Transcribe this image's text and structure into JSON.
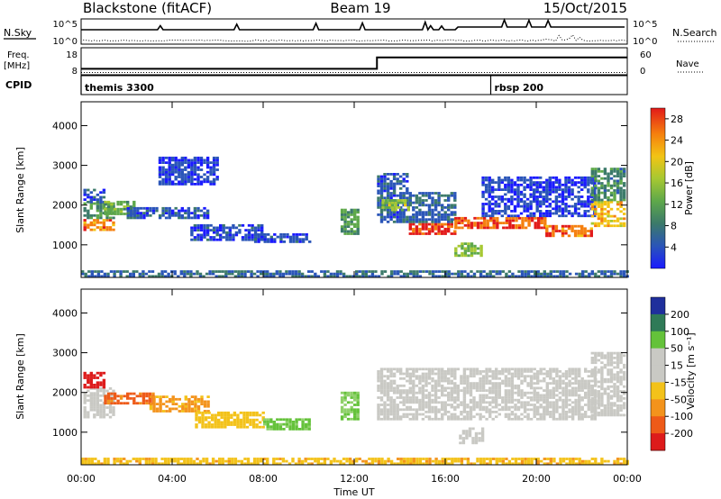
{
  "header": {
    "station": "Blackstone (fitACF)",
    "beam": "Beam 19",
    "date": "15/Oct/2015"
  },
  "status_panels": {
    "nsky_label": "N.Sky",
    "nsearch_label": "N.Search",
    "freq_label": "Freq.",
    "freq_unit": "[MHz]",
    "nave_label": "Nave",
    "cpid_label": "CPID",
    "noise_ticks_left": [
      "10^5",
      "10^0"
    ],
    "noise_ticks_right": [
      "10^5",
      "10^0"
    ],
    "freq_ticks": [
      "18",
      "8"
    ],
    "nave_ticks": [
      "60",
      "0"
    ],
    "freq_steps": [
      {
        "t": 0,
        "f": 10.2
      },
      {
        "t": 13.0,
        "f": 14.4
      },
      {
        "t": 24,
        "f": 14.4
      }
    ],
    "nave_steps": [
      {
        "t": 0,
        "n": 5
      },
      {
        "t": 24,
        "n": 5
      }
    ],
    "cpid_segments": [
      {
        "start": 0,
        "end": 18.0,
        "label": "themis 3300"
      },
      {
        "start": 18.0,
        "end": 24,
        "label": "rbsp 200"
      }
    ]
  },
  "chart_data": [
    {
      "type": "heatmap",
      "title": "Power",
      "ylabel": "Slant Range [km]",
      "xlabel": "Time UT",
      "xlim": [
        0,
        24
      ],
      "ylim": [
        180,
        4600
      ],
      "yticks": [
        "1000",
        "2000",
        "3000",
        "4000"
      ],
      "xticks": [
        "00:00",
        "04:00",
        "08:00",
        "12:00",
        "16:00",
        "20:00",
        "00:00"
      ],
      "colorbar": {
        "label": "Power [dB]",
        "ticks": [
          "4",
          "8",
          "12",
          "16",
          "20",
          "24",
          "28"
        ],
        "range": [
          0,
          30
        ]
      },
      "regions": [
        {
          "t0": 0.1,
          "t1": 1.4,
          "r0": 1350,
          "r1": 1650,
          "v": 24
        },
        {
          "t0": 0.1,
          "t1": 1.4,
          "r0": 1650,
          "r1": 2050,
          "v": 11
        },
        {
          "t0": 0.1,
          "t1": 1.0,
          "r0": 2050,
          "r1": 2400,
          "v": 6
        },
        {
          "t0": 1.0,
          "t1": 2.4,
          "r0": 1750,
          "r1": 2100,
          "v": 13
        },
        {
          "t0": 2.0,
          "t1": 5.6,
          "r0": 1650,
          "r1": 1950,
          "v": 6
        },
        {
          "t0": 4.8,
          "t1": 8.0,
          "r0": 1100,
          "r1": 1500,
          "v": 5
        },
        {
          "t0": 7.6,
          "t1": 10.0,
          "r0": 1050,
          "r1": 1250,
          "v": 5
        },
        {
          "t0": 3.4,
          "t1": 6.0,
          "r0": 2500,
          "r1": 3200,
          "v": 4
        },
        {
          "t0": 11.4,
          "t1": 12.2,
          "r0": 1250,
          "r1": 1900,
          "v": 12
        },
        {
          "t0": 13.0,
          "t1": 14.4,
          "r0": 1550,
          "r1": 2800,
          "v": 6
        },
        {
          "t0": 13.2,
          "t1": 14.4,
          "r0": 1850,
          "r1": 2100,
          "v": 16
        },
        {
          "t0": 14.4,
          "t1": 16.4,
          "r0": 1250,
          "r1": 1550,
          "v": 27
        },
        {
          "t0": 14.4,
          "t1": 16.4,
          "r0": 1550,
          "r1": 2300,
          "v": 7
        },
        {
          "t0": 16.4,
          "t1": 17.6,
          "r0": 700,
          "r1": 1050,
          "v": 15
        },
        {
          "t0": 16.4,
          "t1": 20.4,
          "r0": 1400,
          "r1": 1700,
          "v": 26
        },
        {
          "t0": 17.6,
          "t1": 22.6,
          "r0": 1700,
          "r1": 2700,
          "v": 4
        },
        {
          "t0": 20.4,
          "t1": 22.4,
          "r0": 1200,
          "r1": 1450,
          "v": 25
        },
        {
          "t0": 22.4,
          "t1": 23.9,
          "r0": 1450,
          "r1": 2100,
          "v": 21
        },
        {
          "t0": 22.4,
          "t1": 23.9,
          "r0": 2100,
          "r1": 2900,
          "v": 10
        },
        {
          "t0": 0.0,
          "t1": 24.0,
          "r0": 180,
          "r1": 320,
          "v": 7
        }
      ]
    },
    {
      "type": "heatmap",
      "title": "Velocity",
      "ylabel": "Slant Range [km]",
      "xlabel": "Time UT",
      "xlim": [
        0,
        24
      ],
      "ylim": [
        180,
        4600
      ],
      "yticks": [
        "1000",
        "2000",
        "3000",
        "4000"
      ],
      "xticks": [
        "00:00",
        "04:00",
        "08:00",
        "12:00",
        "16:00",
        "20:00",
        "00:00"
      ],
      "colorbar": {
        "label": "Velocity [m s⁻¹]",
        "ticks": [
          "200",
          "100",
          "50",
          "15",
          "-15",
          "-50",
          "-100",
          "-200"
        ]
      },
      "regions": [
        {
          "t0": 0.1,
          "t1": 1.4,
          "r0": 1350,
          "r1": 2100,
          "v": 0
        },
        {
          "t0": 0.1,
          "t1": 1.0,
          "r0": 2100,
          "r1": 2500,
          "v": -220
        },
        {
          "t0": 1.0,
          "t1": 3.2,
          "r0": 1700,
          "r1": 2000,
          "v": -110
        },
        {
          "t0": 3.0,
          "t1": 5.6,
          "r0": 1500,
          "r1": 1900,
          "v": -60
        },
        {
          "t0": 5.0,
          "t1": 8.0,
          "r0": 1100,
          "r1": 1500,
          "v": -30
        },
        {
          "t0": 8.0,
          "t1": 10.0,
          "r0": 1050,
          "r1": 1300,
          "v": 40
        },
        {
          "t0": 11.4,
          "t1": 12.2,
          "r0": 1300,
          "r1": 2000,
          "v": 30
        },
        {
          "t0": 13.0,
          "t1": 22.6,
          "r0": 1300,
          "r1": 2600,
          "v": 0
        },
        {
          "t0": 16.6,
          "t1": 17.6,
          "r0": 700,
          "r1": 1100,
          "v": 0
        },
        {
          "t0": 22.4,
          "t1": 23.9,
          "r0": 1400,
          "r1": 3000,
          "v": 0
        },
        {
          "t0": 0.0,
          "t1": 24.0,
          "r0": 180,
          "r1": 320,
          "v": -40
        }
      ]
    }
  ]
}
